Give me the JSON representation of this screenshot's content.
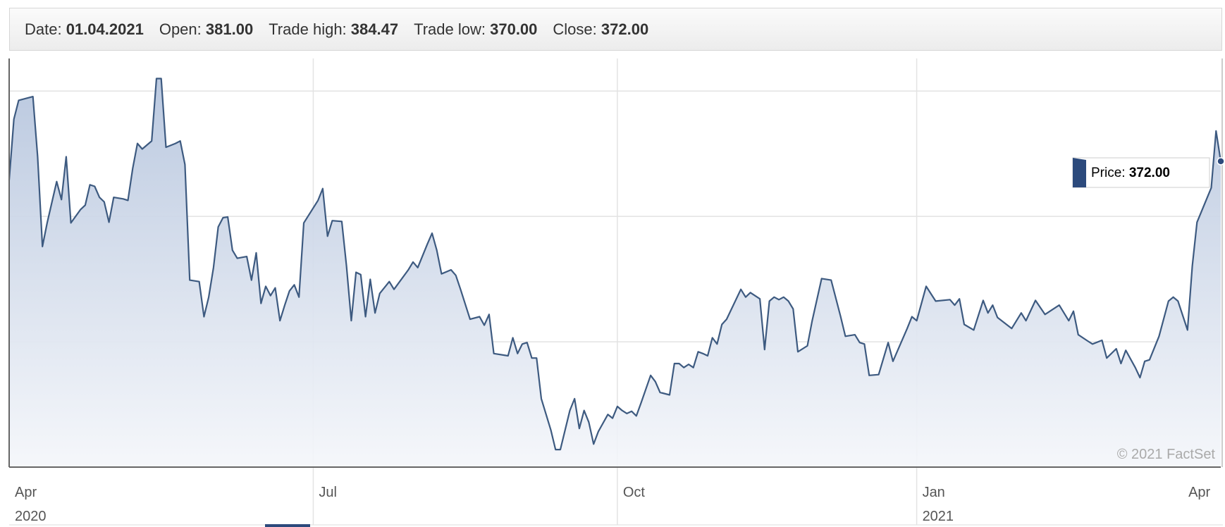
{
  "header": [
    {
      "label": "Date:",
      "value": "01.04.2021"
    },
    {
      "label": "Open:",
      "value": "381.00"
    },
    {
      "label": "Trade high:",
      "value": "384.47"
    },
    {
      "label": "Trade low:",
      "value": "370.00"
    },
    {
      "label": "Close:",
      "value": "372.00"
    }
  ],
  "chart_data": {
    "type": "area",
    "x": [
      0,
      1,
      2,
      5,
      6,
      7,
      8,
      10,
      11,
      12,
      13,
      15,
      16,
      17,
      18,
      19,
      20,
      21,
      22,
      24,
      25,
      26,
      27,
      28,
      30,
      31,
      32,
      33,
      35,
      36,
      37,
      38,
      40,
      41,
      42,
      43,
      44,
      45,
      46,
      47,
      48,
      50,
      51,
      52,
      53,
      54,
      55,
      56,
      57,
      58,
      59,
      60,
      61,
      62,
      65,
      66,
      67,
      68,
      70,
      71,
      72,
      73,
      74,
      75,
      76,
      77,
      78,
      80,
      81,
      84,
      85,
      86,
      88,
      89,
      90,
      91,
      93,
      94,
      95,
      97,
      99,
      100,
      101,
      102,
      105,
      106,
      107,
      108,
      109,
      110,
      111,
      112,
      114,
      115,
      116,
      118,
      119,
      120,
      121,
      122,
      123,
      124,
      126,
      127,
      128,
      129,
      130,
      131,
      132,
      133,
      135,
      136,
      137,
      139,
      140,
      141,
      142,
      143,
      144,
      145,
      146,
      147,
      148,
      149,
      150,
      151,
      154,
      155,
      156,
      158,
      159,
      160,
      161,
      162,
      163,
      164,
      165,
      166,
      168,
      169,
      171,
      173,
      175,
      176,
      178,
      179,
      180,
      181,
      183,
      185,
      186,
      189,
      190,
      191,
      193,
      195,
      198,
      199,
      200,
      201,
      203,
      205,
      206,
      207,
      208,
      211,
      213,
      214,
      216,
      218,
      221,
      223,
      224,
      225,
      227,
      228,
      230,
      231,
      233,
      234,
      235,
      237,
      238,
      239,
      240,
      242,
      244,
      245,
      246,
      248,
      249,
      250,
      253,
      254,
      255
    ],
    "series": [
      {
        "name": "Price:",
        "color": "#3d5a80",
        "values": [
          364.5,
          388.8,
          396.3,
          397.8,
          373.8,
          338.0,
          347.4,
          363.9,
          356.7,
          373.8,
          347.4,
          352.7,
          354.5,
          362.6,
          362.0,
          357.6,
          355.8,
          347.7,
          357.6,
          357.0,
          356.4,
          369.2,
          379.1,
          376.9,
          380.1,
          405.0,
          405.0,
          377.6,
          379.1,
          380.1,
          370.7,
          324.6,
          324.0,
          310.0,
          317.8,
          329.6,
          345.8,
          349.5,
          349.8,
          336.5,
          333.3,
          334.0,
          324.6,
          335.5,
          315.3,
          322.1,
          318.4,
          321.5,
          308.4,
          314.6,
          320.3,
          322.7,
          317.8,
          347.4,
          356.4,
          361.1,
          342.1,
          348.3,
          348.0,
          330.2,
          308.4,
          327.7,
          326.8,
          310.0,
          324.9,
          311.5,
          319.3,
          324.0,
          320.9,
          328.7,
          331.8,
          329.6,
          338.9,
          343.3,
          336.5,
          327.1,
          328.7,
          326.5,
          320.9,
          309.0,
          310.0,
          306.6,
          310.9,
          295.3,
          294.4,
          301.6,
          295.3,
          299.1,
          299.7,
          293.5,
          293.5,
          277.3,
          264.8,
          257.0,
          257.0,
          272.6,
          277.3,
          265.4,
          272.6,
          267.9,
          259.2,
          264.2,
          271.0,
          269.5,
          274.2,
          272.6,
          271.4,
          272.3,
          270.4,
          275.7,
          286.6,
          284.1,
          279.8,
          278.8,
          291.3,
          291.3,
          289.7,
          291.0,
          289.7,
          296.0,
          295.3,
          294.4,
          301.6,
          299.1,
          306.9,
          309.0,
          320.9,
          317.8,
          319.6,
          317.1,
          296.9,
          316.2,
          317.8,
          316.8,
          317.8,
          316.2,
          313.1,
          296.0,
          298.4,
          308.4,
          325.2,
          324.6,
          310.0,
          302.2,
          302.8,
          299.7,
          299.1,
          286.6,
          286.9,
          299.7,
          292.2,
          305.3,
          310.0,
          308.4,
          322.1,
          316.2,
          316.8,
          314.6,
          317.1,
          306.9,
          304.7,
          316.5,
          311.5,
          314.6,
          309.7,
          305.3,
          311.5,
          308.4,
          316.5,
          310.9,
          314.6,
          308.4,
          312.2,
          302.8,
          300.3,
          299.1,
          300.6,
          293.5,
          297.2,
          291.3,
          296.6,
          289.7,
          285.7,
          292.2,
          292.8,
          302.2,
          316.2,
          317.8,
          316.2,
          304.7,
          330.2,
          347.7,
          361.4,
          384.1,
          372.0
        ]
      }
    ],
    "xlim": [
      0,
      255
    ],
    "xticks": [
      {
        "value": 0,
        "label": "Apr"
      },
      {
        "value": 64,
        "label": "Jul"
      },
      {
        "value": 128,
        "label": "Oct"
      },
      {
        "value": 191,
        "label": "Jan"
      },
      {
        "value": 247,
        "label": "Apr"
      }
    ],
    "year_labels": [
      {
        "value": 0,
        "label": "2020"
      },
      {
        "value": 191,
        "label": "2021"
      }
    ],
    "ylim": [
      250,
      413
    ],
    "yticks": [
      250,
      300,
      350,
      400
    ],
    "grid": true,
    "tooltip": {
      "label": "Price:",
      "value": "372.00"
    },
    "watermark": "© 2021 FactSet"
  }
}
